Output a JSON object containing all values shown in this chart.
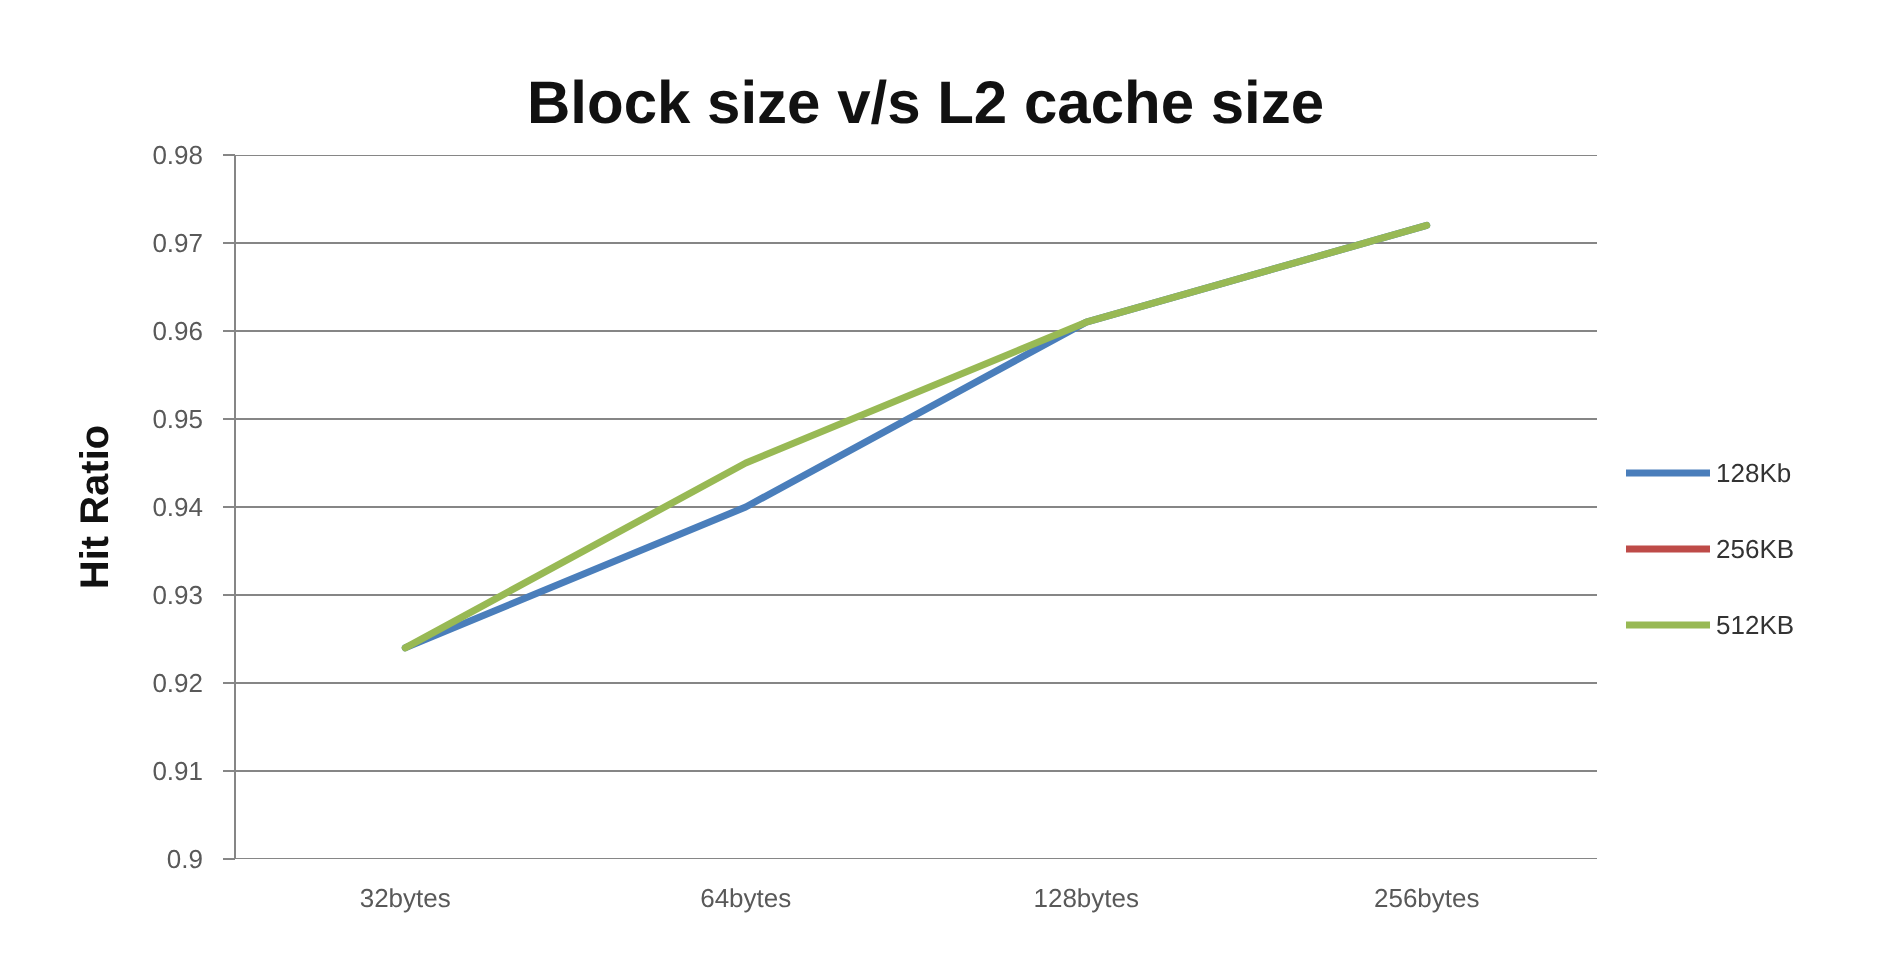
{
  "chart_data": {
    "type": "line",
    "title": "Block size v/s L2 cache size",
    "ylabel": "Hit Ratio",
    "categories": [
      "32bytes",
      "64bytes",
      "128bytes",
      "256bytes"
    ],
    "series": [
      {
        "name": "128Kb",
        "color": "#4a7ebb",
        "values": [
          0.924,
          0.94,
          0.961,
          0.972
        ]
      },
      {
        "name": "256KB",
        "color": "#be4b48",
        "values": [
          null,
          null,
          null,
          null
        ]
      },
      {
        "name": "512KB",
        "color": "#98b954",
        "values": [
          0.924,
          0.945,
          0.961,
          0.972
        ]
      }
    ],
    "ylim": [
      0.9,
      0.98
    ],
    "yticks": [
      0.9,
      0.91,
      0.92,
      0.93,
      0.94,
      0.95,
      0.96,
      0.97,
      0.98
    ],
    "grid": "y",
    "legend": "right"
  }
}
